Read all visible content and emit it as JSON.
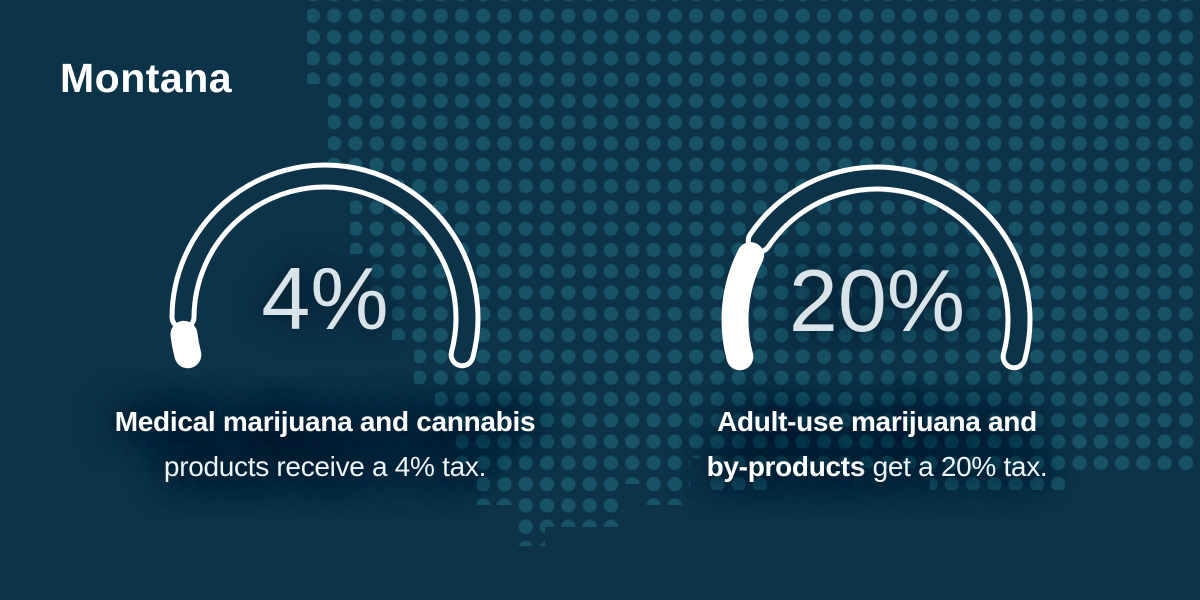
{
  "title": "Montana",
  "theme": {
    "background": "#0d3349",
    "dot_color": "#175266",
    "arc_color": "#ffffff",
    "value_color": "#d9e3ea",
    "text_color": "#ffffff",
    "halo": "rgba(7,32,49,0.88)"
  },
  "chart_data": [
    {
      "type": "gauge",
      "value": 4,
      "min": 0,
      "max": 100,
      "display": "4%",
      "start_deg": 165,
      "sweep_deg": 210,
      "gap_deg": 7,
      "caption": {
        "line1_bold": "Medical marijuana and cannabis",
        "line2_bold": "",
        "line2_text": "products receive a 4% tax."
      }
    },
    {
      "type": "gauge",
      "value": 20,
      "min": 0,
      "max": 100,
      "display": "20%",
      "start_deg": 165,
      "sweep_deg": 210,
      "gap_deg": 7,
      "caption": {
        "line1_bold": "Adult-use marijuana and",
        "line2_bold": "by-products",
        "line2_text": " get a 20% tax."
      }
    }
  ]
}
